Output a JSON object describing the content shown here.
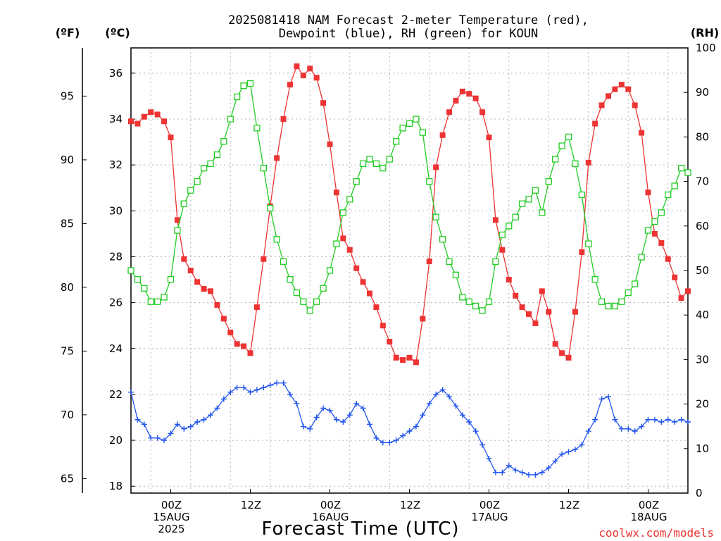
{
  "chart_data": {
    "type": "line",
    "title_lines": [
      "2025081418 NAM Forecast 2-meter Temperature (red),",
      "Dewpoint (blue), RH (green) for KOUN"
    ],
    "xlabel": "Forecast Time (UTC)",
    "source": "coolwx.com/models",
    "unit_labels": {
      "fahrenheit": "(ºF)",
      "celsius": "(ºC)",
      "rh": "(RH)"
    },
    "x_hours_range": [
      -6,
      78
    ],
    "x_ticks": [
      {
        "hour": 0,
        "lines": [
          "00Z",
          "15AUG",
          "2025"
        ]
      },
      {
        "hour": 12,
        "lines": [
          "12Z"
        ]
      },
      {
        "hour": 24,
        "lines": [
          "00Z",
          "16AUG"
        ]
      },
      {
        "hour": 36,
        "lines": [
          "12Z"
        ]
      },
      {
        "hour": 48,
        "lines": [
          "00Z",
          "17AUG"
        ]
      },
      {
        "hour": 60,
        "lines": [
          "12Z"
        ]
      },
      {
        "hour": 72,
        "lines": [
          "00Z",
          "18AUG"
        ]
      }
    ],
    "y_celsius": {
      "range": [
        17.7,
        37.1
      ],
      "ticks": [
        18,
        20,
        22,
        24,
        26,
        28,
        30,
        32,
        34,
        36
      ]
    },
    "y_fahrenheit": {
      "ticks": [
        65,
        70,
        75,
        80,
        85,
        90,
        95
      ]
    },
    "y_rh": {
      "range": [
        0,
        100
      ],
      "ticks": [
        0,
        10,
        20,
        30,
        40,
        50,
        60,
        70,
        80,
        90,
        100
      ]
    },
    "grid": true,
    "series": [
      {
        "name": "Temperature",
        "color": "#ee3333",
        "axis": "celsius",
        "marker": "filled-square",
        "x": [
          -6,
          -5,
          -4,
          -3,
          -2,
          -1,
          0,
          1,
          2,
          3,
          4,
          5,
          6,
          7,
          8,
          9,
          10,
          11,
          12,
          13,
          14,
          15,
          16,
          17,
          18,
          19,
          20,
          21,
          22,
          23,
          24,
          25,
          26,
          27,
          28,
          29,
          30,
          31,
          32,
          33,
          34,
          35,
          36,
          37,
          38,
          39,
          40,
          41,
          42,
          43,
          44,
          45,
          46,
          47,
          48,
          49,
          50,
          51,
          52,
          53,
          54,
          55,
          56,
          57,
          58,
          59,
          60,
          61,
          62,
          63,
          64,
          65,
          66,
          67,
          68,
          69,
          70,
          71,
          72,
          73,
          74,
          75,
          76,
          77,
          78
        ],
        "values": [
          33.9,
          33.8,
          34.1,
          34.3,
          34.2,
          33.9,
          33.2,
          29.6,
          27.9,
          27.4,
          26.9,
          26.6,
          26.5,
          25.9,
          25.3,
          24.7,
          24.2,
          24.1,
          23.8,
          25.8,
          27.9,
          30.2,
          32.3,
          34.0,
          35.5,
          36.3,
          35.9,
          36.2,
          35.8,
          34.7,
          32.9,
          30.8,
          28.8,
          28.3,
          27.5,
          26.9,
          26.4,
          25.8,
          25.0,
          24.3,
          23.6,
          23.5,
          23.6,
          23.4,
          25.3,
          27.8,
          31.9,
          33.3,
          34.3,
          34.8,
          35.2,
          35.1,
          34.9,
          34.3,
          33.2,
          29.6,
          28.3,
          27.0,
          26.3,
          25.8,
          25.5,
          25.1,
          26.5,
          25.6,
          24.2,
          23.8,
          23.6,
          25.6,
          28.2,
          32.1,
          33.8,
          34.6,
          35.0,
          35.3,
          35.5,
          35.3,
          34.6,
          33.4,
          30.8,
          29.0,
          28.6,
          27.9,
          27.1,
          26.2,
          26.5
        ]
      },
      {
        "name": "Dewpoint",
        "color": "#2255ee",
        "axis": "celsius",
        "marker": "plus",
        "x": [
          -6,
          -5,
          -4,
          -3,
          -2,
          -1,
          0,
          1,
          2,
          3,
          4,
          5,
          6,
          7,
          8,
          9,
          10,
          11,
          12,
          13,
          14,
          15,
          16,
          17,
          18,
          19,
          20,
          21,
          22,
          23,
          24,
          25,
          26,
          27,
          28,
          29,
          30,
          31,
          32,
          33,
          34,
          35,
          36,
          37,
          38,
          39,
          40,
          41,
          42,
          43,
          44,
          45,
          46,
          47,
          48,
          49,
          50,
          51,
          52,
          53,
          54,
          55,
          56,
          57,
          58,
          59,
          60,
          61,
          62,
          63,
          64,
          65,
          66,
          67,
          68,
          69,
          70,
          71,
          72,
          73,
          74,
          75,
          76,
          77,
          78
        ],
        "values": [
          22.1,
          20.9,
          20.7,
          20.1,
          20.1,
          20.0,
          20.3,
          20.7,
          20.5,
          20.6,
          20.8,
          20.9,
          21.1,
          21.4,
          21.8,
          22.1,
          22.3,
          22.3,
          22.1,
          22.2,
          22.3,
          22.4,
          22.5,
          22.5,
          22.0,
          21.6,
          20.6,
          20.5,
          21.0,
          21.4,
          21.3,
          20.9,
          20.8,
          21.1,
          21.6,
          21.4,
          20.7,
          20.1,
          19.9,
          19.9,
          20.0,
          20.2,
          20.4,
          20.6,
          21.1,
          21.6,
          22.0,
          22.2,
          21.9,
          21.5,
          21.1,
          20.8,
          20.4,
          19.8,
          19.2,
          18.6,
          18.6,
          18.9,
          18.7,
          18.6,
          18.5,
          18.5,
          18.6,
          18.8,
          19.1,
          19.4,
          19.5,
          19.6,
          19.8,
          20.4,
          20.9,
          21.8,
          21.9,
          20.9,
          20.5,
          20.5,
          20.4,
          20.6,
          20.9,
          20.9,
          20.8,
          20.9,
          20.8,
          20.9,
          20.8
        ]
      },
      {
        "name": "RH",
        "color": "#22cc22",
        "axis": "rh",
        "marker": "open-square",
        "x": [
          -6,
          -5,
          -4,
          -3,
          -2,
          -1,
          0,
          1,
          2,
          3,
          4,
          5,
          6,
          7,
          8,
          9,
          10,
          11,
          12,
          13,
          14,
          15,
          16,
          17,
          18,
          19,
          20,
          21,
          22,
          23,
          24,
          25,
          26,
          27,
          28,
          29,
          30,
          31,
          32,
          33,
          34,
          35,
          36,
          37,
          38,
          39,
          40,
          41,
          42,
          43,
          44,
          45,
          46,
          47,
          48,
          49,
          50,
          51,
          52,
          53,
          54,
          55,
          56,
          57,
          58,
          59,
          60,
          61,
          62,
          63,
          64,
          65,
          66,
          67,
          68,
          69,
          70,
          71,
          72,
          73,
          74,
          75,
          76,
          77,
          78
        ],
        "values": [
          50,
          48,
          46,
          43,
          43,
          44,
          48,
          59,
          65,
          68,
          70,
          73,
          74,
          76,
          79,
          84,
          89,
          91.5,
          92,
          82,
          73,
          64,
          57,
          52,
          48,
          45,
          43,
          41,
          43,
          46,
          50,
          56,
          63,
          66,
          70,
          74,
          75,
          74,
          73,
          75,
          79,
          82,
          83,
          84,
          81,
          70,
          62,
          57,
          52,
          49,
          44,
          43,
          42,
          41,
          43,
          52,
          58,
          60,
          62,
          65,
          66,
          68,
          63,
          70,
          75,
          78,
          80,
          74,
          67,
          56,
          48,
          43,
          42,
          42,
          43,
          45,
          47,
          53,
          59,
          61,
          63,
          67,
          69,
          73,
          72
        ]
      }
    ]
  }
}
